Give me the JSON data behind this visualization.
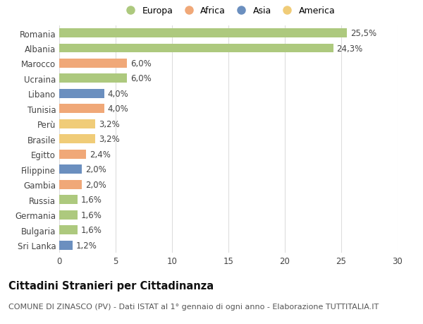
{
  "categories": [
    "Romania",
    "Albania",
    "Marocco",
    "Ucraina",
    "Libano",
    "Tunisia",
    "Perù",
    "Brasile",
    "Egitto",
    "Filippine",
    "Gambia",
    "Russia",
    "Germania",
    "Bulgaria",
    "Sri Lanka"
  ],
  "values": [
    25.5,
    24.3,
    6.0,
    6.0,
    4.0,
    4.0,
    3.2,
    3.2,
    2.4,
    2.0,
    2.0,
    1.6,
    1.6,
    1.6,
    1.2
  ],
  "labels": [
    "25,5%",
    "24,3%",
    "6,0%",
    "6,0%",
    "4,0%",
    "4,0%",
    "3,2%",
    "3,2%",
    "2,4%",
    "2,0%",
    "2,0%",
    "1,6%",
    "1,6%",
    "1,6%",
    "1,2%"
  ],
  "continents": [
    "Europa",
    "Europa",
    "Africa",
    "Europa",
    "Asia",
    "Africa",
    "America",
    "America",
    "Africa",
    "Asia",
    "Africa",
    "Europa",
    "Europa",
    "Europa",
    "Asia"
  ],
  "continent_colors": {
    "Europa": "#adc97e",
    "Africa": "#f0a878",
    "Asia": "#6b8fbf",
    "America": "#f0cc78"
  },
  "legend_order": [
    "Europa",
    "Africa",
    "Asia",
    "America"
  ],
  "title": "Cittadini Stranieri per Cittadinanza",
  "subtitle": "COMUNE DI ZINASCO (PV) - Dati ISTAT al 1° gennaio di ogni anno - Elaborazione TUTTITALIA.IT",
  "xlim": [
    0,
    30
  ],
  "xticks": [
    0,
    5,
    10,
    15,
    20,
    25,
    30
  ],
  "bg_color": "#ffffff",
  "grid_color": "#dddddd",
  "bar_height": 0.6,
  "title_fontsize": 10.5,
  "subtitle_fontsize": 8,
  "tick_fontsize": 8.5,
  "label_fontsize": 8.5,
  "legend_fontsize": 9
}
